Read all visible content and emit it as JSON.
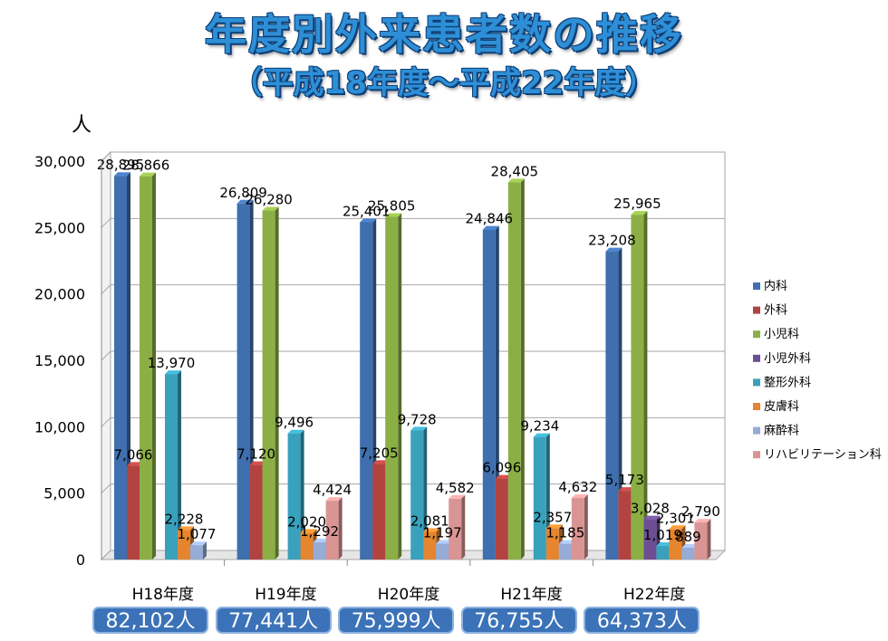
{
  "title": "年度別外来患者数の推移",
  "subtitle": "（平成18年度～平成22年度）",
  "chart_data": {
    "type": "bar",
    "ylabel": "人",
    "ylim": [
      0,
      30000
    ],
    "yticks": [
      "0",
      "5,000",
      "10,000",
      "15,000",
      "20,000",
      "25,000",
      "30,000"
    ],
    "categories": [
      "H18年度",
      "H19年度",
      "H20年度",
      "H21年度",
      "H22年度"
    ],
    "totals": [
      "82,102人",
      "77,441人",
      "75,999人",
      "76,755人",
      "64,373人"
    ],
    "legend_position": "right",
    "grid": true,
    "series": [
      {
        "name": "内科",
        "color": "#3f6fae",
        "values": [
          28895,
          26809,
          25401,
          24846,
          23208
        ],
        "labels": [
          "28,895",
          "26,809",
          "25,401",
          "24,846",
          "23,208"
        ]
      },
      {
        "name": "外科",
        "color": "#b24341",
        "values": [
          7066,
          7120,
          7205,
          6096,
          5173
        ],
        "labels": [
          "7,066",
          "7,120",
          "7,205",
          "6,096",
          "5,173"
        ]
      },
      {
        "name": "小児科",
        "color": "#8caf45",
        "values": [
          28866,
          26280,
          25805,
          28405,
          25965
        ],
        "labels": [
          "28,866",
          "26,280",
          "25,805",
          "28,405",
          "25,965"
        ]
      },
      {
        "name": "小児外科",
        "color": "#6c4f93",
        "values": [
          null,
          null,
          null,
          null,
          3028
        ],
        "labels": [
          "",
          "",
          "",
          "",
          "3,028"
        ]
      },
      {
        "name": "整形外科",
        "color": "#39a1bc",
        "values": [
          13970,
          9496,
          9728,
          9234,
          1019
        ],
        "labels": [
          "13,970",
          "9,496",
          "9,728",
          "9,234",
          "1,019"
        ]
      },
      {
        "name": "皮膚科",
        "color": "#e5852f",
        "values": [
          2228,
          2020,
          2081,
          2357,
          2301
        ],
        "labels": [
          "2,228",
          "2,020",
          "2,081",
          "2,357",
          "2,301"
        ]
      },
      {
        "name": "麻酔科",
        "color": "#96acd6",
        "values": [
          1077,
          1292,
          1197,
          1185,
          889
        ],
        "labels": [
          "1,077",
          "1,292",
          "1,197",
          "1,185",
          "889"
        ]
      },
      {
        "name": "リハビリテーション科",
        "color": "#d99594",
        "values": [
          null,
          4424,
          4582,
          4632,
          2790
        ],
        "labels": [
          "",
          "4,424",
          "4,582",
          "4,632",
          "2,790"
        ]
      }
    ]
  }
}
